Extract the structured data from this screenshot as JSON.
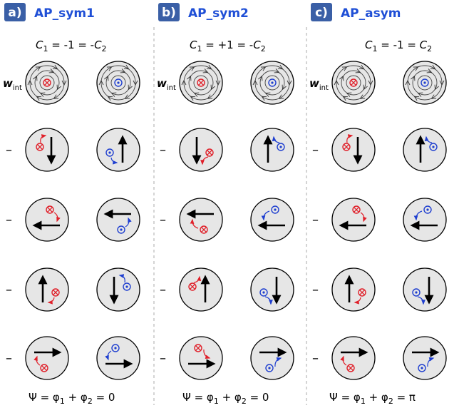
{
  "panels": [
    {
      "label": "a)",
      "title": "AP_sym1",
      "condition": {
        "c1": "C",
        "s1": "1",
        "mid": " = -1 = -",
        "c2": "C",
        "s2": "2"
      },
      "w_label": "w",
      "w_sub": "int",
      "rows": [
        {
          "sign": "–"
        },
        {
          "sign": "–"
        },
        {
          "sign": "–"
        },
        {
          "sign": "–"
        }
      ],
      "bottom": {
        "pre": "Ψ = φ",
        "s1": "1",
        "mid": " + φ",
        "s2": "2",
        "post": " = 0"
      }
    },
    {
      "label": "b)",
      "title": "AP_sym2",
      "condition": {
        "c1": "C",
        "s1": "1",
        "mid": " = +1 = -",
        "c2": "C",
        "s2": "2"
      },
      "w_label": "w",
      "w_sub": "int",
      "rows": [
        {
          "sign": "–"
        },
        {
          "sign": "–"
        },
        {
          "sign": "–"
        },
        {
          "sign": "–"
        }
      ],
      "bottom": {
        "pre": "Ψ = φ",
        "s1": "1",
        "mid": " + φ",
        "s2": "2",
        "post": " = 0"
      }
    },
    {
      "label": "c)",
      "title": "AP_asym",
      "condition": {
        "c1": "C",
        "s1": "1",
        "mid": " = -1 = ",
        "c2": "C",
        "s2": "2"
      },
      "w_label": "w",
      "w_sub": "int",
      "rows": [
        {
          "sign": "–"
        },
        {
          "sign": "–"
        },
        {
          "sign": "–"
        },
        {
          "sign": "–"
        }
      ],
      "bottom": {
        "pre": "Ψ = φ",
        "s1": "1",
        "mid": " + φ",
        "s2": "2",
        "post": " = π"
      }
    }
  ],
  "colors": {
    "label_bg": "#3a5fa6",
    "title": "#1f4fd6",
    "red": "#e0202a",
    "blue": "#1f3fd0",
    "circle_fill": "#e6e6e6",
    "divider": "#aaaaaa"
  },
  "symbols": {
    "left_disk": "into-page-symbol",
    "right_disk": "out-of-page-symbol"
  }
}
